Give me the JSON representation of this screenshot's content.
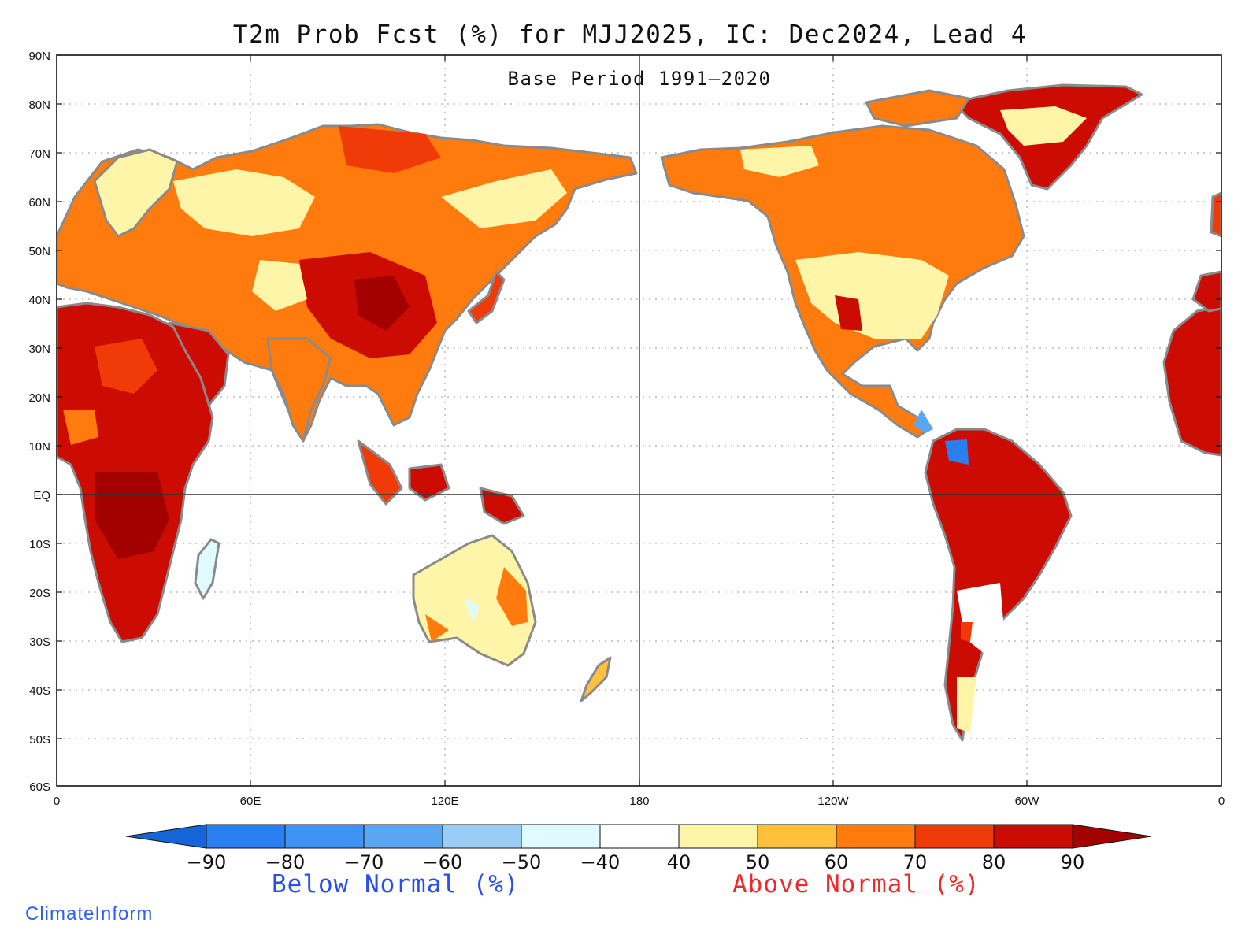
{
  "title": "T2m Prob Fcst (%) for MJJ2025, IC: Dec2024, Lead 4",
  "subtitle": "Base Period 1991–2020",
  "axes": {
    "lat_labels": [
      "90N",
      "80N",
      "70N",
      "60N",
      "50N",
      "40N",
      "30N",
      "20N",
      "10N",
      "EQ",
      "10S",
      "20S",
      "30S",
      "40S",
      "50S",
      "60S"
    ],
    "lon_labels": [
      "0",
      "60E",
      "120E",
      "180",
      "120W",
      "60W",
      "0"
    ]
  },
  "colorbar": {
    "labels": [
      "−90",
      "−80",
      "−70",
      "−60",
      "−50",
      "−40",
      "40",
      "50",
      "60",
      "70",
      "80",
      "90"
    ],
    "colors": [
      "#1565d8",
      "#2a7ff0",
      "#3f93f5",
      "#5aa6f2",
      "#99cdf6",
      "#e0fbff",
      "#ffffff",
      "#fff5a8",
      "#ffc13d",
      "#ff7b0d",
      "#f03a08",
      "#cc0c03",
      "#a30000"
    ]
  },
  "legend": {
    "below_label": "Below Normal (%)",
    "below_color": "#2a4df0",
    "above_label": "Above Normal (%)",
    "above_color": "#f02a2a"
  },
  "credit": {
    "text": "ClimateInform",
    "color": "#2a5ff0"
  }
}
